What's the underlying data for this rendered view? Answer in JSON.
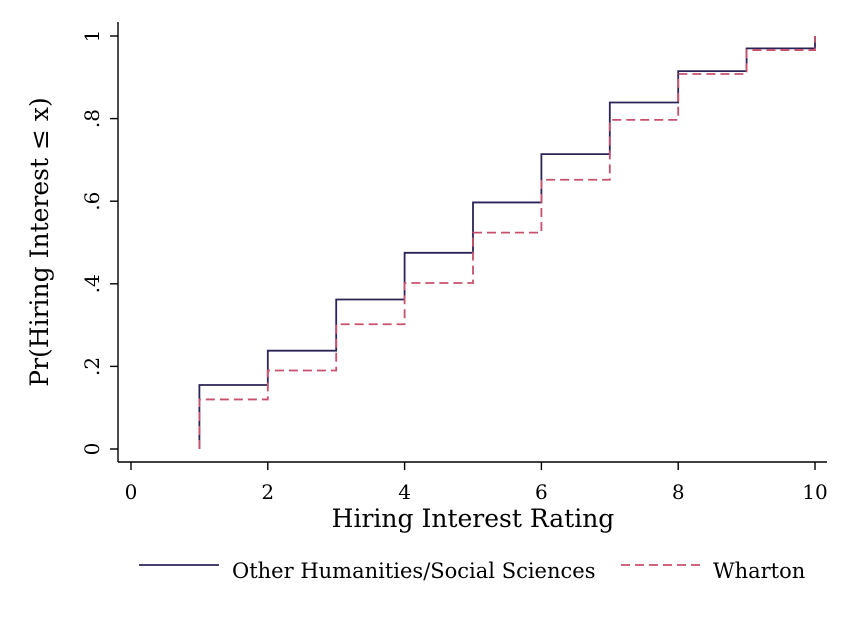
{
  "chart_data": {
    "type": "line",
    "step": true,
    "xlabel": "Hiring Interest Rating",
    "ylabel": "Pr(Hiring Interest ≤ x)",
    "xlim": [
      0,
      10
    ],
    "ylim": [
      0,
      1
    ],
    "x_ticks": [
      0,
      2,
      4,
      6,
      8,
      10
    ],
    "x_tick_labels": [
      "0",
      "2",
      "4",
      "6",
      "8",
      "10"
    ],
    "y_ticks": [
      0,
      0.2,
      0.4,
      0.6,
      0.8,
      1
    ],
    "y_tick_labels": [
      "0",
      ".2",
      ".4",
      ".6",
      ".8",
      "1"
    ],
    "grid": false,
    "legend_position": "bottom",
    "x": [
      1,
      2,
      3,
      4,
      5,
      6,
      7,
      8,
      9,
      10
    ],
    "series": [
      {
        "name": "Other Humanities/Social Sciences",
        "color": "#2b2458",
        "style": "solid",
        "values": [
          0.155,
          0.238,
          0.362,
          0.475,
          0.597,
          0.714,
          0.839,
          0.915,
          0.97,
          1.0
        ]
      },
      {
        "name": "Wharton",
        "color": "#c8506c",
        "style": "dashed",
        "values": [
          0.12,
          0.19,
          0.302,
          0.402,
          0.524,
          0.652,
          0.797,
          0.908,
          0.966,
          1.0
        ]
      }
    ]
  }
}
